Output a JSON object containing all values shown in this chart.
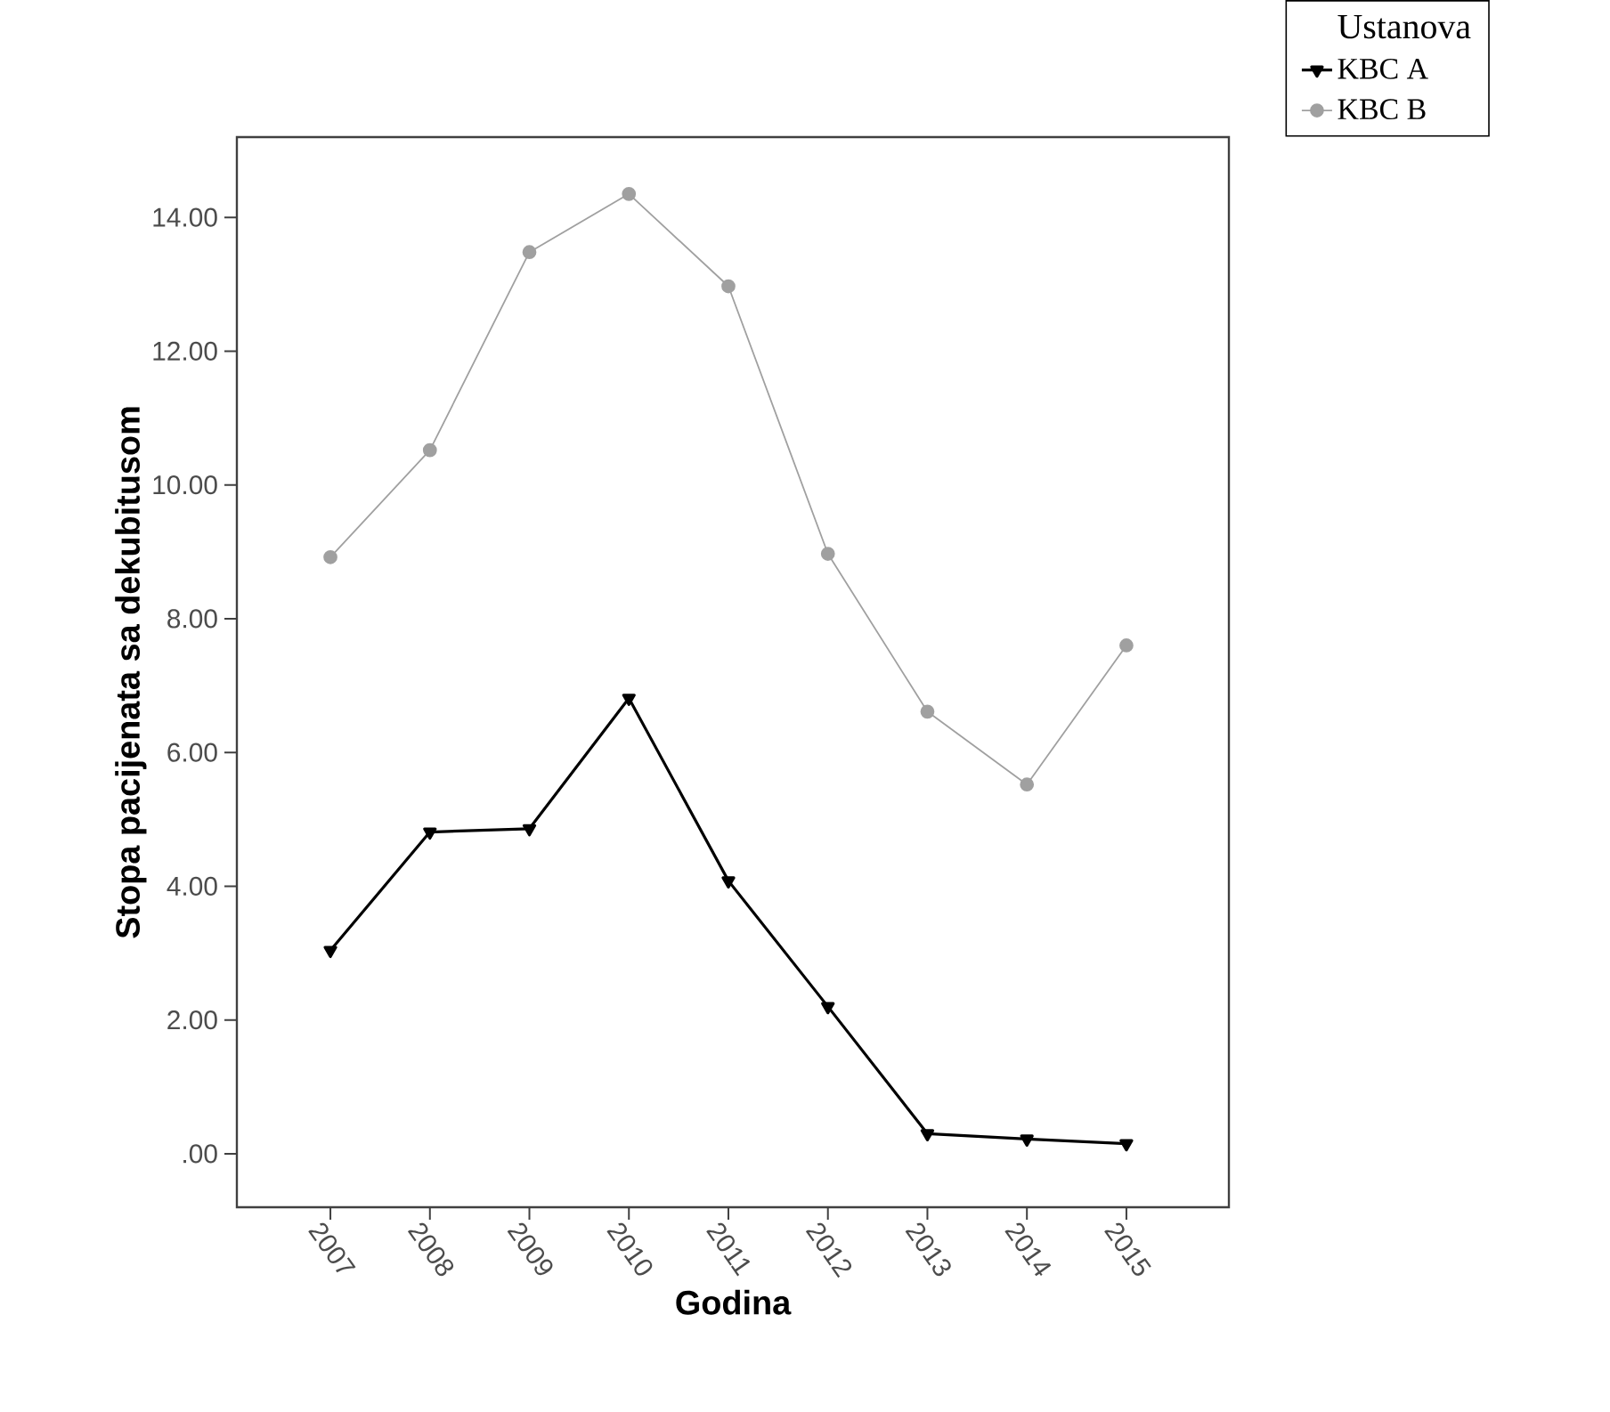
{
  "chart_data": {
    "type": "line",
    "xlabel": "Godina",
    "ylabel": "Stopa pacijenata sa dekubitusom",
    "legend_title": "Ustanova",
    "categories": [
      "2007",
      "2008",
      "2009",
      "2010",
      "2011",
      "2012",
      "2013",
      "2014",
      "2015"
    ],
    "series": [
      {
        "name": "KBC A",
        "color": "#000000",
        "marker": "triangle",
        "values": [
          3.04,
          4.81,
          4.86,
          6.81,
          4.08,
          2.2,
          0.3,
          0.22,
          0.15
        ]
      },
      {
        "name": "KBC B",
        "color": "#a0a0a0",
        "marker": "circle",
        "values": [
          8.92,
          10.52,
          13.48,
          14.35,
          12.97,
          8.97,
          6.61,
          5.52,
          7.6
        ]
      }
    ],
    "ylim": [
      -0.8,
      15.2
    ],
    "yticks": [
      {
        "value": 0,
        "label": ".00"
      },
      {
        "value": 2,
        "label": "2.00"
      },
      {
        "value": 4,
        "label": "4.00"
      },
      {
        "value": 6,
        "label": "6.00"
      },
      {
        "value": 8,
        "label": "8.00"
      },
      {
        "value": 10,
        "label": "10.00"
      },
      {
        "value": 12,
        "label": "12.00"
      },
      {
        "value": 14,
        "label": "14.00"
      }
    ],
    "legend": "top right",
    "grid": false,
    "line_style": "solid"
  }
}
